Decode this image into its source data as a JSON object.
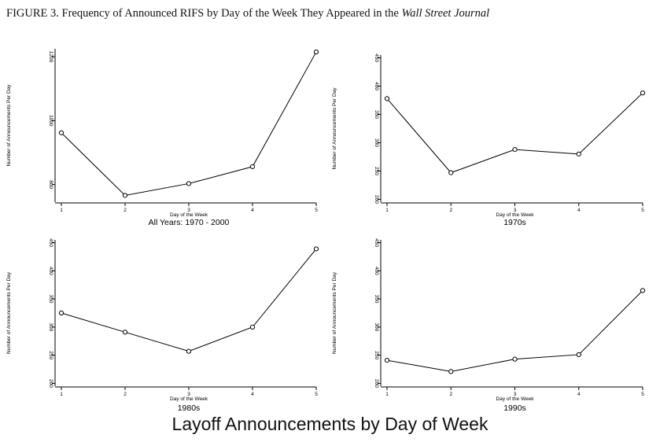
{
  "figure": {
    "label": "FIGURE 3.",
    "title_text": "Frequency of Announced RIFS by Day of the Week They Appeared in the",
    "title_italic": "Wall Street Journal"
  },
  "main_title": "Layoff Announcements by Day of Week",
  "chart_data": [
    {
      "type": "line",
      "title": "All Years: 1970 - 2000",
      "xlabel": "Day of the Week",
      "ylabel": "Number of Announcements Per Day",
      "x": [
        1,
        2,
        3,
        4,
        5
      ],
      "values": [
        962,
        766,
        803,
        856,
        1215
      ],
      "ylim": [
        745,
        1225
      ],
      "yticks": [
        800,
        1000,
        1200
      ],
      "yticks_labels": [
        "800",
        "1000",
        "1200"
      ],
      "xlim": [
        1,
        5
      ]
    },
    {
      "type": "line",
      "title": "1970s",
      "xlabel": "Day of the Week",
      "ylabel": "Number of Announcements Per Day",
      "x": [
        1,
        2,
        3,
        4,
        5
      ],
      "values": [
        378,
        247,
        288,
        280,
        388
      ],
      "ylim": [
        195,
        455
      ],
      "yticks": [
        200,
        250,
        300,
        350,
        400,
        450
      ],
      "yticks_labels": [
        "200",
        "250",
        "300",
        "350",
        "400",
        "450"
      ],
      "xlim": [
        1,
        5
      ]
    },
    {
      "type": "line",
      "title": "1980s",
      "xlabel": "Day of the Week",
      "ylabel": "Number of Announcements Per Day",
      "x": [
        1,
        2,
        3,
        4,
        5
      ],
      "values": [
        325,
        291,
        257,
        300,
        439
      ],
      "ylim": [
        195,
        455
      ],
      "yticks": [
        200,
        250,
        300,
        350,
        400,
        450
      ],
      "yticks_labels": [
        "200",
        "250",
        "300",
        "350",
        "400",
        "450"
      ],
      "xlim": [
        1,
        5
      ]
    },
    {
      "type": "line",
      "title": "1990s",
      "xlabel": "Day of the Week",
      "ylabel": "Number of Announcements Per Day",
      "x": [
        1,
        2,
        3,
        4,
        5
      ],
      "values": [
        241,
        221,
        243,
        251,
        365
      ],
      "ylim": [
        195,
        455
      ],
      "yticks": [
        200,
        250,
        300,
        350,
        400,
        450
      ],
      "yticks_labels": [
        "200",
        "250",
        "300",
        "350",
        "400",
        "450"
      ],
      "xlim": [
        1,
        5
      ]
    }
  ]
}
